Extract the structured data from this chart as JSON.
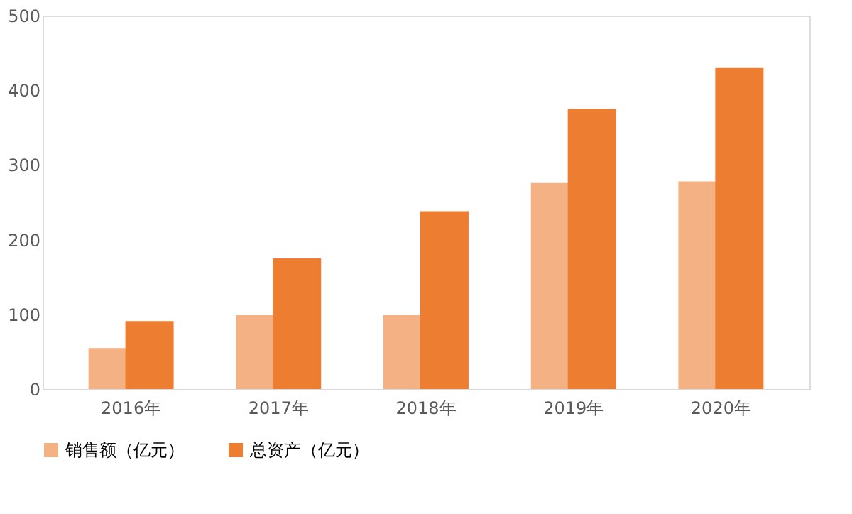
{
  "chart_data": {
    "type": "bar",
    "categories": [
      "2016年",
      "2017年",
      "2018年",
      "2019年",
      "2020年"
    ],
    "series": [
      {
        "name": "销售额（亿元）",
        "color": "#f4b183",
        "values": [
          55,
          99,
          99,
          276,
          278
        ]
      },
      {
        "name": "总资产（亿元）",
        "color": "#ed7d31",
        "values": [
          91,
          175,
          238,
          375,
          430
        ]
      }
    ],
    "ylim": [
      0,
      500
    ],
    "yticks": [
      0,
      100,
      200,
      300,
      400,
      500
    ],
    "grid": false,
    "legend": "bottom"
  }
}
